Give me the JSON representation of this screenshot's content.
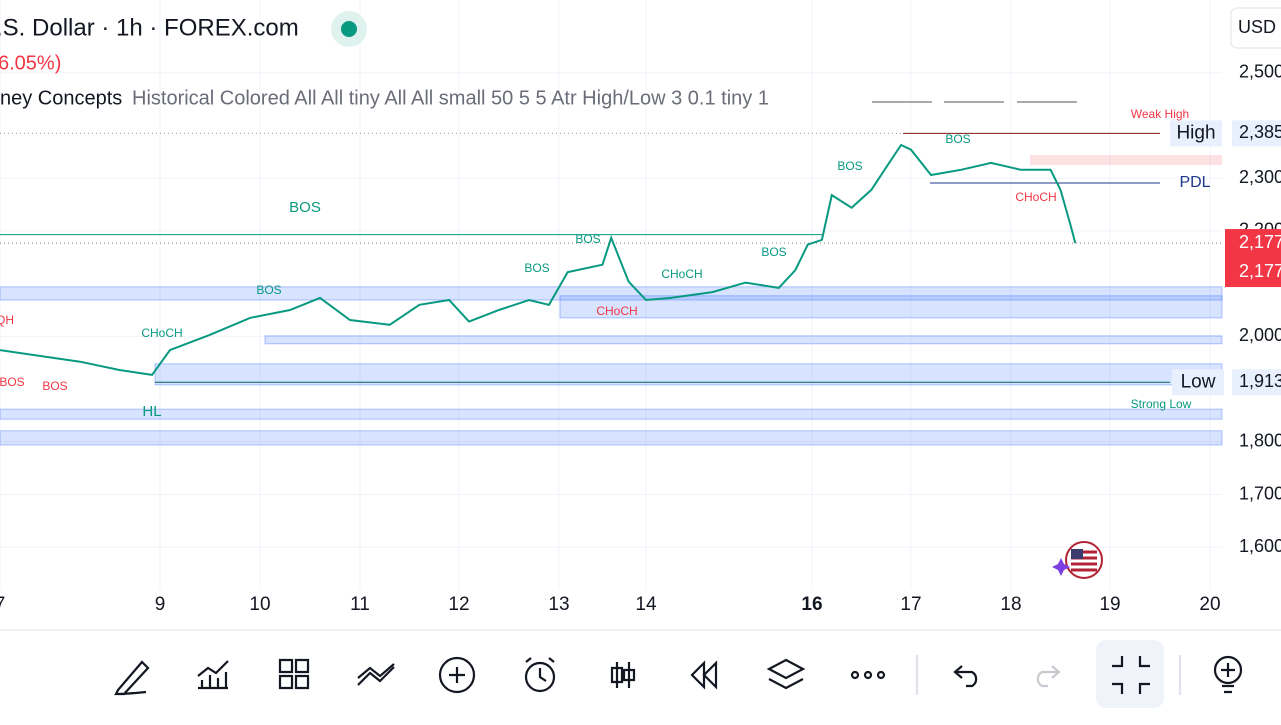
{
  "header": {
    "symbol": ".S. Dollar · 1h · FOREX.com",
    "change": "6.05%)",
    "indicator_name": "ney Concepts",
    "indicator_params": "Historical Colored All All tiny All All small 50 5 5 Atr High/Low 3 0.1 tiny 1",
    "currency": "USD"
  },
  "chart_data": {
    "type": "line",
    "color": "#089981",
    "x": [
      7.0,
      8.0,
      8.5,
      8.9,
      9.1,
      9.5,
      9.9,
      10.3,
      10.6,
      10.9,
      11.3,
      11.6,
      11.9,
      12.1,
      12.4,
      12.7,
      12.9,
      13.1,
      13.5,
      13.6,
      13.8,
      14.0,
      14.3,
      14.8,
      15.2,
      15.6,
      15.8,
      15.95,
      16.1,
      16.2,
      16.4,
      16.6,
      16.8,
      16.9,
      17.0,
      17.2,
      17.5,
      17.8,
      18.1,
      18.4,
      18.5,
      18.6,
      18.65
    ],
    "values": [
      1974,
      1952,
      1936,
      1927,
      1974,
      2003,
      2035,
      2050,
      2073,
      2031,
      2022,
      2060,
      2069,
      2028,
      2050,
      2069,
      2060,
      2122,
      2136,
      2187,
      2104,
      2069,
      2073,
      2084,
      2102,
      2092,
      2126,
      2174,
      2183,
      2268,
      2244,
      2278,
      2335,
      2363,
      2354,
      2306,
      2316,
      2329,
      2316,
      2316,
      2278,
      2212,
      2177
    ],
    "xlim": [
      7,
      20.1
    ],
    "xticks": [
      7,
      9,
      10,
      11,
      12,
      13,
      14,
      16,
      17,
      18,
      19,
      20
    ],
    "ylim": [
      1519,
      2638
    ],
    "yticks": [
      {
        "value": 2500,
        "label": "2,500"
      },
      {
        "value": 2300,
        "label": "2,300"
      },
      {
        "value": 2200,
        "label": "2,200"
      },
      {
        "value": 2000,
        "label": "2,000"
      },
      {
        "value": 1800,
        "label": "1,800"
      },
      {
        "value": 1700,
        "label": "1,700"
      },
      {
        "value": 1600,
        "label": "1,600"
      }
    ],
    "grid": true,
    "levels": [
      {
        "name": "High",
        "value": 2385,
        "value_label": "2,385"
      },
      {
        "name": "Low",
        "value": 1913,
        "value_label": "1,913"
      },
      {
        "name": "PDL",
        "value": 2291
      }
    ],
    "last_price": 2177,
    "last_price_label": "2,177",
    "bos_level": 2193,
    "zones": [
      [
        2069,
        2094
      ],
      [
        2035,
        2077
      ],
      [
        1986,
        2001
      ],
      [
        1908,
        1948
      ],
      [
        1843,
        1862
      ],
      [
        1794,
        1821
      ]
    ],
    "supply_zone": [
      2325,
      2344
    ],
    "annotations": [
      "BOS",
      "BOS",
      "BOS",
      "BOS",
      "CHoCH",
      "BOS",
      "BOS",
      "QH",
      "HL",
      "CHoCH",
      "BOS",
      "CHoCH",
      "BOS",
      "BOS",
      "CHoCH",
      "Weak High",
      "Strong Low"
    ]
  }
}
